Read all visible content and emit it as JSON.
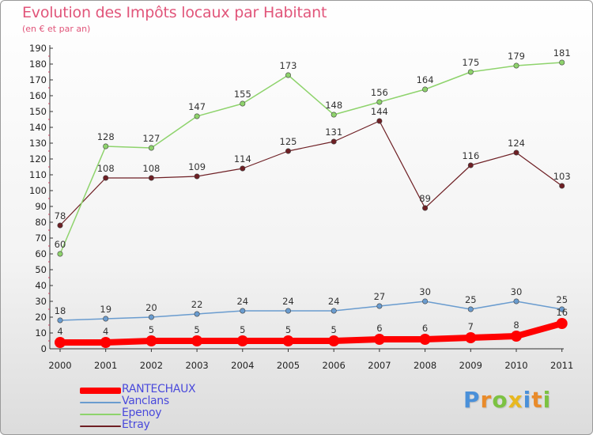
{
  "header": {
    "title": "Evolution des Impôts locaux par Habitant",
    "subtitle": "(en € et par an)"
  },
  "logo": {
    "text": "Proxiti",
    "letters": [
      {
        "ch": "P",
        "color": "#4a90d9"
      },
      {
        "ch": "r",
        "color": "#e98b2a"
      },
      {
        "ch": "o",
        "color": "#7cc242"
      },
      {
        "ch": "x",
        "color": "#e8b820"
      },
      {
        "ch": "i",
        "color": "#4a90d9"
      },
      {
        "ch": "t",
        "color": "#e98b2a"
      },
      {
        "ch": "i",
        "color": "#7cc242"
      }
    ]
  },
  "chart_data": {
    "type": "line",
    "title": "Evolution des Impôts locaux par Habitant",
    "subtitle": "(en € et par an)",
    "xlabel": "",
    "ylabel": "",
    "categories": [
      "2000",
      "2001",
      "2002",
      "2003",
      "2004",
      "2005",
      "2006",
      "2007",
      "2008",
      "2009",
      "2010",
      "2011"
    ],
    "ylim": [
      0,
      190
    ],
    "yticks": [
      0,
      10,
      20,
      30,
      40,
      50,
      60,
      70,
      80,
      90,
      100,
      110,
      120,
      130,
      140,
      150,
      160,
      170,
      180,
      190
    ],
    "grid": false,
    "legend_position": "bottom-left",
    "series": [
      {
        "name": "RANTECHAUX",
        "color": "#ff0000",
        "width": 8,
        "marker": 7,
        "values": [
          4,
          4,
          5,
          5,
          5,
          5,
          5,
          6,
          6,
          7,
          8,
          16
        ]
      },
      {
        "name": "Vanclans",
        "color": "#6a9ccf",
        "width": 1.5,
        "marker": 3.2,
        "values": [
          18,
          19,
          20,
          22,
          24,
          24,
          24,
          27,
          30,
          25,
          30,
          25
        ]
      },
      {
        "name": "Epenoy",
        "color": "#8ed36c",
        "width": 1.5,
        "marker": 3.2,
        "values": [
          60,
          128,
          127,
          147,
          155,
          173,
          148,
          156,
          164,
          175,
          179,
          181
        ]
      },
      {
        "name": "Etray",
        "color": "#6e1f24",
        "width": 1.2,
        "marker": 3.2,
        "values": [
          78,
          108,
          108,
          109,
          114,
          125,
          131,
          144,
          89,
          116,
          124,
          103
        ]
      }
    ]
  }
}
